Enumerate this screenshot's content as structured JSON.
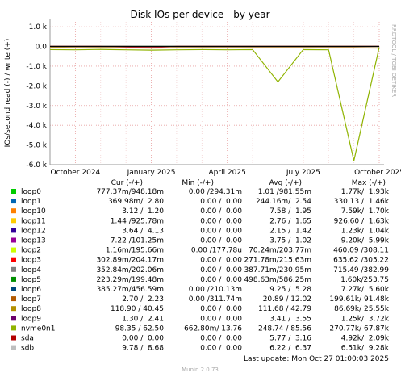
{
  "chart_data": {
    "type": "line",
    "title": "Disk IOs per device - by year",
    "y_label": "IOs/second read (-) / write (+)",
    "x": [
      null,
      "October 2024",
      null,
      null,
      "January 2025",
      null,
      null,
      "April 2025",
      null,
      null,
      "July 2025",
      null,
      null,
      "October 2025"
    ],
    "ylim": [
      -6000,
      1250
    ],
    "yticks": [
      {
        "value": 1000,
        "label": "1.0 k"
      },
      {
        "value": 0,
        "label": "0.0"
      },
      {
        "value": -1000,
        "label": "-1.0 k"
      },
      {
        "value": -2000,
        "label": "-2.0 k"
      },
      {
        "value": -3000,
        "label": "-3.0 k"
      },
      {
        "value": -4000,
        "label": "-4.0 k"
      },
      {
        "value": -5000,
        "label": "-5.0 k"
      },
      {
        "value": -6000,
        "label": "-6.0 k"
      }
    ],
    "grid": true,
    "legend_headers": [
      "Cur (-/+)",
      "Min (-/+)",
      "Avg (-/+)",
      "Max (-/+)"
    ],
    "series": [
      {
        "name": "loop0",
        "color": "#00cc00",
        "cur": "777.37m/948.18m",
        "min": "0.00 /294.31m",
        "avg": "1.01 /981.55m",
        "max": "1.77k/  1.93k",
        "values": [
          1,
          1,
          1,
          1,
          2,
          1,
          1,
          1,
          1,
          1,
          1,
          1,
          1,
          1
        ]
      },
      {
        "name": "loop1",
        "color": "#0066b3",
        "cur": "369.98m/  2.80",
        "min": "0.00 /  0.00",
        "avg": "244.16m/  2.54",
        "max": "330.13 /  1.46k",
        "values": [
          3,
          3,
          3,
          3,
          3,
          3,
          3,
          3,
          3,
          3,
          3,
          3,
          3,
          3
        ]
      },
      {
        "name": "loop10",
        "color": "#ff8000",
        "cur": "3.12 /  1.20",
        "min": "0.00 /  0.00",
        "avg": "7.58 /  1.95",
        "max": "7.59k/  1.70k",
        "values": [
          -6,
          -6,
          -6,
          -6,
          -8,
          -6,
          -6,
          -6,
          -6,
          -6,
          -6,
          -6,
          -6,
          -2
        ]
      },
      {
        "name": "loop11",
        "color": "#ffcc00",
        "cur": "1.44 /925.78m",
        "min": "0.00 /  0.00",
        "avg": "2.76 /  1.65",
        "max": "926.60 /  1.63k",
        "values": [
          -1,
          -1,
          -1,
          -1,
          -1,
          -1,
          -1,
          -1,
          -1,
          -1,
          -1,
          -1,
          -1,
          -1
        ]
      },
      {
        "name": "loop12",
        "color": "#330099",
        "cur": "3.64 /  4.13",
        "min": "0.00 /  0.00",
        "avg": "2.15 /  1.42",
        "max": "1.23k/  1.04k",
        "values": [
          0,
          0,
          0,
          0,
          0,
          0,
          0,
          0,
          0,
          0,
          0,
          0,
          0,
          1
        ]
      },
      {
        "name": "loop13",
        "color": "#990099",
        "cur": "7.22 /101.25m",
        "min": "0.00 /  0.00",
        "avg": "3.75 /  1.02",
        "max": "9.20k/  5.99k",
        "values": [
          -2,
          -2,
          -2,
          -2,
          -3,
          -2,
          -2,
          -2,
          -2,
          -2,
          -2,
          -2,
          -2,
          -7
        ]
      },
      {
        "name": "loop2",
        "color": "#ccff00",
        "cur": "1.16m/195.66m",
        "min": "0.00 /177.78u",
        "avg": "70.24m/203.77m",
        "max": "460.09 /308.11",
        "values": [
          0,
          0,
          0,
          0,
          0,
          0,
          0,
          0,
          0,
          0,
          0,
          0,
          0,
          0
        ]
      },
      {
        "name": "loop3",
        "color": "#ff0000",
        "cur": "302.89m/204.17m",
        "min": "0.00 /  0.00",
        "avg": "271.78m/215.63m",
        "max": "635.62 /305.22",
        "values": [
          0,
          0,
          0,
          0,
          -20,
          0,
          0,
          0,
          0,
          0,
          0,
          0,
          0,
          0
        ]
      },
      {
        "name": "loop4",
        "color": "#808080",
        "cur": "352.84m/202.06m",
        "min": "0.00 /  0.00",
        "avg": "387.71m/230.95m",
        "max": "715.49 /382.99",
        "values": [
          0,
          0,
          0,
          0,
          0,
          0,
          0,
          0,
          0,
          0,
          0,
          0,
          0,
          0
        ]
      },
      {
        "name": "loop5",
        "color": "#008f00",
        "cur": "223.29m/199.48m",
        "min": "0.00 /  0.00",
        "avg": "498.63m/586.25m",
        "max": "1.60k/253.75",
        "values": [
          0,
          0,
          0,
          0,
          0,
          0,
          0,
          0,
          0,
          0,
          0,
          0,
          0,
          0
        ]
      },
      {
        "name": "loop6",
        "color": "#00487d",
        "cur": "385.27m/456.59m",
        "min": "0.00 /210.13m",
        "avg": "9.25 /  5.28",
        "max": "7.27k/  5.60k",
        "values": [
          -4,
          -4,
          -4,
          -4,
          -5,
          -4,
          -4,
          -4,
          -4,
          -4,
          -4,
          -4,
          -4,
          -4
        ]
      },
      {
        "name": "loop7",
        "color": "#b35a00",
        "cur": "2.70 /  2.23",
        "min": "0.00 /311.74m",
        "avg": "20.89 / 12.02",
        "max": "199.61k/ 91.48k",
        "values": [
          -10,
          -10,
          -10,
          -10,
          -12,
          -10,
          -10,
          -10,
          -10,
          -10,
          -10,
          -10,
          -10,
          -3
        ]
      },
      {
        "name": "loop8",
        "color": "#b38f00",
        "cur": "118.90 / 40.45",
        "min": "0.00 /  0.00",
        "avg": "111.68 / 42.79",
        "max": "86.69k/ 25.55k",
        "values": [
          -60,
          -70,
          -70,
          -70,
          -80,
          -70,
          -70,
          -70,
          -70,
          -70,
          -70,
          -70,
          -70,
          -80
        ]
      },
      {
        "name": "loop9",
        "color": "#6b006b",
        "cur": "1.30 /  2.41",
        "min": "0.00 /  0.00",
        "avg": "3.41 /  3.55",
        "max": "1.25k/  3.72k",
        "values": [
          0,
          0,
          0,
          0,
          0,
          0,
          0,
          0,
          0,
          0,
          0,
          0,
          0,
          1
        ]
      },
      {
        "name": "nvme0n1",
        "color": "#8fb300",
        "cur": "98.35 / 62.50",
        "min": "662.80m/ 13.76",
        "avg": "248.74 / 85.56",
        "max": "270.77k/ 67.87k",
        "values": [
          -160,
          -170,
          -150,
          -170,
          -190,
          -170,
          -160,
          -170,
          -160,
          -1800,
          -160,
          -170,
          -5800,
          -40
        ]
      },
      {
        "name": "sda",
        "color": "#b30000",
        "cur": "0.00 /  0.00",
        "min": "0.00 /  0.00",
        "avg": "5.77 /  3.16",
        "max": "4.92k/  2.09k",
        "values": [
          0,
          0,
          0,
          -30,
          -60,
          0,
          0,
          0,
          0,
          0,
          0,
          0,
          0,
          0
        ]
      },
      {
        "name": "sdb",
        "color": "#bebebe",
        "cur": "9.78 /  8.68",
        "min": "0.00 /  0.00",
        "avg": "6.22 /  6.37",
        "max": "6.51k/  9.28k",
        "values": [
          -5,
          -5,
          -5,
          -5,
          -5,
          -5,
          -5,
          -5,
          -5,
          -5,
          -5,
          -5,
          -5,
          -9
        ]
      }
    ],
    "last_update": "Last update: Mon Oct 27 01:00:03 2025",
    "footer": "Munin 2.0.73",
    "watermark": "RRDTOOL / TOBI OETIKER"
  }
}
